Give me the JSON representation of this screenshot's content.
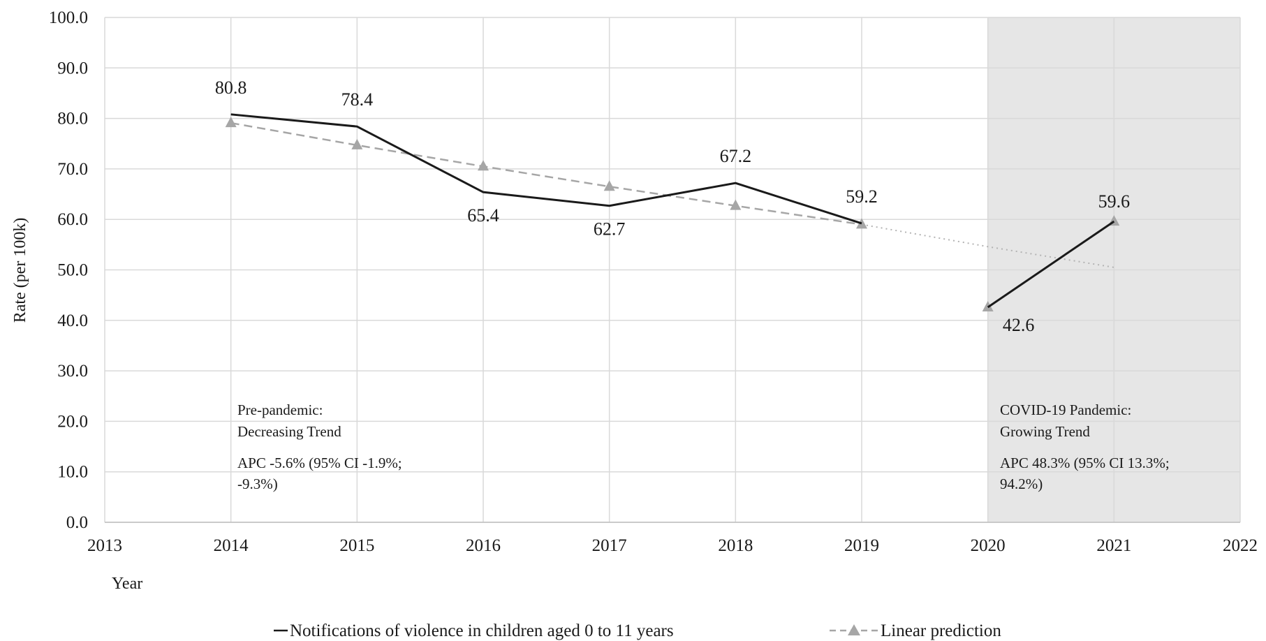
{
  "chart_data": {
    "type": "line",
    "x_label": "Year",
    "y_label": "Rate (per 100k)",
    "x_ticks": [
      "2013",
      "2014",
      "2015",
      "2016",
      "2017",
      "2018",
      "2019",
      "2020",
      "2021",
      "2022"
    ],
    "y_ticks": [
      "0.0",
      "10.0",
      "20.0",
      "30.0",
      "40.0",
      "50.0",
      "60.0",
      "70.0",
      "80.0",
      "90.0",
      "100.0"
    ],
    "xlim": [
      2013,
      2022
    ],
    "ylim": [
      0,
      100
    ],
    "grid": true,
    "legend_position": "bottom",
    "shaded_region": {
      "x_start": 2020,
      "x_end": 2022,
      "color": "#e6e6e6"
    },
    "series": [
      {
        "name": "Notifications of violence in children aged 0 to 11 years",
        "style": "solid",
        "color": "#1a1a1a",
        "segments": [
          [
            {
              "x": 2014,
              "y": 80.8,
              "label": "80.8"
            },
            {
              "x": 2015,
              "y": 78.4,
              "label": "78.4"
            },
            {
              "x": 2016,
              "y": 65.4,
              "label": "65.4"
            },
            {
              "x": 2017,
              "y": 62.7,
              "label": "62.7"
            },
            {
              "x": 2018,
              "y": 67.2,
              "label": "67.2"
            },
            {
              "x": 2019,
              "y": 59.2,
              "label": "59.2"
            }
          ],
          [
            {
              "x": 2020,
              "y": 42.6,
              "label": "42.6"
            },
            {
              "x": 2021,
              "y": 59.6,
              "label": "59.6"
            }
          ]
        ]
      },
      {
        "name": "Linear prediction",
        "style": "dashed",
        "marker": "triangle",
        "color": "#a6a6a6",
        "points": [
          {
            "x": 2014,
            "y": 79.1
          },
          {
            "x": 2015,
            "y": 74.7
          },
          {
            "x": 2016,
            "y": 70.5
          },
          {
            "x": 2017,
            "y": 66.5
          },
          {
            "x": 2018,
            "y": 62.7
          },
          {
            "x": 2019,
            "y": 59.0
          },
          {
            "x": 2020,
            "y": 42.6
          },
          {
            "x": 2021,
            "y": 59.6
          }
        ],
        "extrapolation": [
          {
            "x": 2019,
            "y": 59.0
          },
          {
            "x": 2020,
            "y": 54.6
          },
          {
            "x": 2021,
            "y": 50.5
          }
        ]
      }
    ],
    "annotations": {
      "pre": {
        "title_1": "Pre-pandemic:",
        "title_2": "Decreasing Trend",
        "apc_1": "APC -5.6% (95% CI -1.9%;",
        "apc_2": "-9.3%)"
      },
      "post": {
        "title_1": "COVID-19 Pandemic:",
        "title_2": "Growing Trend",
        "apc_1": "APC 48.3% (95% CI 13.3%;",
        "apc_2": "94.2%)"
      }
    }
  }
}
